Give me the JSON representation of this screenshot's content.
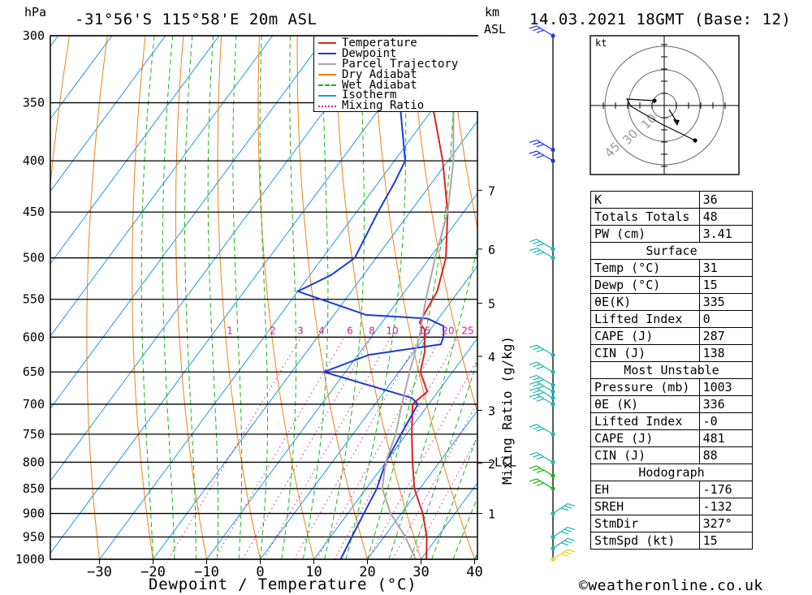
{
  "header": {
    "p_unit": "hPa",
    "location": "-31°56'S 115°58'E 20m ASL",
    "km_label": "km",
    "asl_label": "ASL",
    "run": "14.03.2021 18GMT (Base: 12)"
  },
  "footer": {
    "credit": "©weatheronline.co.uk"
  },
  "hodograph": {
    "unit": "kt",
    "rings": [
      "10",
      "30",
      "45"
    ]
  },
  "chart_data": {
    "type": "line",
    "title": "-31°56'S 115°58'E 20m ASL",
    "xlabel": "Dewpoint / Temperature (°C)",
    "ylabel": "hPa",
    "mixing_ratio_axis_label": "Mixing Ratio (g/kg)",
    "y_scale": "log-pressure",
    "ylim": [
      1000,
      300
    ],
    "xlim": [
      -40,
      40
    ],
    "pressure_ticks": [
      300,
      350,
      400,
      450,
      500,
      550,
      600,
      650,
      700,
      750,
      800,
      850,
      900,
      950,
      1000
    ],
    "temperature_ticks": [
      -30,
      -20,
      -10,
      0,
      10,
      20,
      30,
      40
    ],
    "height_ticks_km": [
      {
        "label": "1",
        "p": 900
      },
      {
        "label": "2",
        "p": 802
      },
      {
        "label": "3",
        "p": 710
      },
      {
        "label": "4",
        "p": 627
      },
      {
        "label": "5",
        "p": 555
      },
      {
        "label": "6",
        "p": 490
      },
      {
        "label": "7",
        "p": 428
      }
    ],
    "lcl": {
      "label": "LCL",
      "p": 800
    },
    "mixing_ratio_labels": [
      "1",
      "2",
      "3",
      "4",
      "6",
      "8",
      "10",
      "15",
      "20",
      "25"
    ],
    "legend": [
      "Temperature",
      "Dewpoint",
      "Parcel Trajectory",
      "Dry Adiabat",
      "Wet Adiabat",
      "Isotherm",
      "Mixing Ratio"
    ],
    "legend_position": "top-right",
    "colors": {
      "temperature": "#e02020",
      "dewpoint": "#1a3ad8",
      "parcel": "#a8a8a8",
      "dry_adiabat": "#f08018",
      "wet_adiabat": "#18b418",
      "isotherm": "#189ce8",
      "mixing_ratio": "#d81a9c",
      "wind": "#1ab4b4"
    },
    "series": [
      {
        "name": "Temperature",
        "points": [
          [
            1000,
            31
          ],
          [
            950,
            28
          ],
          [
            900,
            24
          ],
          [
            850,
            19
          ],
          [
            800,
            15
          ],
          [
            750,
            11
          ],
          [
            700,
            7
          ],
          [
            680,
            8
          ],
          [
            650,
            4
          ],
          [
            620,
            2
          ],
          [
            600,
            0
          ],
          [
            590,
            -1
          ],
          [
            580,
            -3
          ],
          [
            560,
            -3.5
          ],
          [
            540,
            -4
          ],
          [
            500,
            -7
          ],
          [
            450,
            -13
          ],
          [
            400,
            -21
          ],
          [
            350,
            -31
          ],
          [
            300,
            -41
          ]
        ]
      },
      {
        "name": "Dewpoint",
        "points": [
          [
            1000,
            15
          ],
          [
            950,
            14
          ],
          [
            900,
            13
          ],
          [
            850,
            12
          ],
          [
            800,
            10
          ],
          [
            750,
            9
          ],
          [
            700,
            8
          ],
          [
            690,
            6
          ],
          [
            650,
            -14
          ],
          [
            625,
            -8
          ],
          [
            610,
            4
          ],
          [
            600,
            3.5
          ],
          [
            585,
            2
          ],
          [
            575,
            -2
          ],
          [
            570,
            -14
          ],
          [
            540,
            -30
          ],
          [
            520,
            -26
          ],
          [
            500,
            -24
          ],
          [
            450,
            -26
          ],
          [
            420,
            -27
          ],
          [
            400,
            -28
          ],
          [
            350,
            -37
          ],
          [
            300,
            -48
          ]
        ]
      },
      {
        "name": "Parcel Trajectory",
        "points": [
          [
            1000,
            29
          ],
          [
            950,
            24
          ],
          [
            900,
            18
          ],
          [
            850,
            13
          ],
          [
            800,
            10
          ],
          [
            750,
            8
          ],
          [
            700,
            5
          ],
          [
            650,
            2
          ],
          [
            600,
            -1
          ],
          [
            550,
            -5
          ],
          [
            500,
            -9
          ],
          [
            450,
            -13
          ],
          [
            400,
            -19
          ],
          [
            350,
            -27
          ],
          [
            300,
            -36
          ]
        ]
      }
    ],
    "wind_pressures": [
      1000,
      975,
      950,
      900,
      850,
      825,
      800,
      750,
      700,
      690,
      680,
      670,
      650,
      625,
      500,
      490,
      400,
      390,
      300
    ]
  },
  "indices": {
    "rows1": [
      {
        "label": "K",
        "value": "36"
      },
      {
        "label": "Totals Totals",
        "value": "48"
      },
      {
        "label": "PW (cm)",
        "value": "3.41"
      }
    ],
    "surface_title": "Surface",
    "surface": [
      {
        "label": "Temp (°C)",
        "value": "31"
      },
      {
        "label": "Dewp (°C)",
        "value": "15"
      },
      {
        "label": "θE(K)",
        "value": "335"
      },
      {
        "label": "Lifted Index",
        "value": "0"
      },
      {
        "label": "CAPE (J)",
        "value": "287"
      },
      {
        "label": "CIN (J)",
        "value": "138"
      }
    ],
    "mu_title": "Most Unstable",
    "mu": [
      {
        "label": "Pressure (mb)",
        "value": "1003"
      },
      {
        "label": "θE (K)",
        "value": "336"
      },
      {
        "label": "Lifted Index",
        "value": "-0"
      },
      {
        "label": "CAPE (J)",
        "value": "481"
      },
      {
        "label": "CIN (J)",
        "value": "88"
      }
    ],
    "hodo_title": "Hodograph",
    "hodo": [
      {
        "label": "EH",
        "value": "-176"
      },
      {
        "label": "SREH",
        "value": "-132"
      },
      {
        "label": "StmDir",
        "value": "327°"
      },
      {
        "label": "StmSpd (kt)",
        "value": "15"
      }
    ]
  }
}
